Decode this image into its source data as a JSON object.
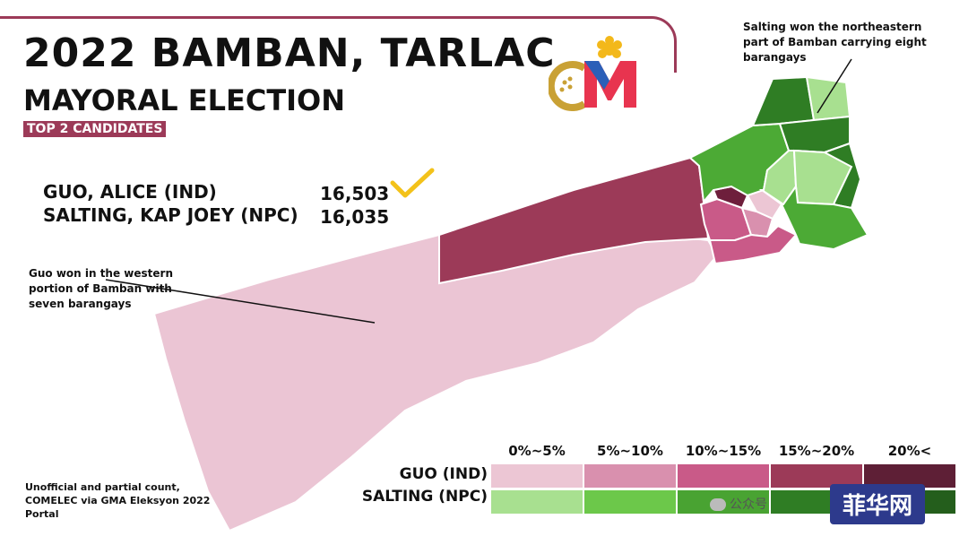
{
  "title": "2022 BAMBAN, TARLAC",
  "subtitle": "MAYORAL ELECTION",
  "tag": "TOP 2 CANDIDATES",
  "candidates": [
    {
      "name": "GUO, ALICE (IND)",
      "votes": "16,503",
      "winner": true
    },
    {
      "name": "SALTING, KAP JOEY (NPC)",
      "votes": "16,035",
      "winner": false
    }
  ],
  "annotations": {
    "west": "Guo won in the western portion of Bamban with seven barangays",
    "northeast": "Salting won the northeastern part of Bamban carrying eight barangays"
  },
  "source": "Unofficial and partial count, COMELEC via GMA Eleksyon 2022 Portal",
  "legend": {
    "bins": [
      "0%~5%",
      "5%~10%",
      "10%~15%",
      "15%~20%",
      "20%<"
    ],
    "rows": [
      {
        "label": "GUO (IND)",
        "colors": [
          "#ecc6d4",
          "#d990ae",
          "#c95a88",
          "#9c3a58",
          "#5e1f36"
        ]
      },
      {
        "label": "SALTING (NPC)",
        "colors": [
          "#a8e090",
          "#6cc84a",
          "#49a332",
          "#2f7d24",
          "#245e1c"
        ]
      }
    ]
  },
  "watermark": {
    "wechat": "公众号",
    "badge": "菲华网"
  },
  "colors": {
    "brand": "#9c3a58",
    "check": "#f3c21a"
  }
}
